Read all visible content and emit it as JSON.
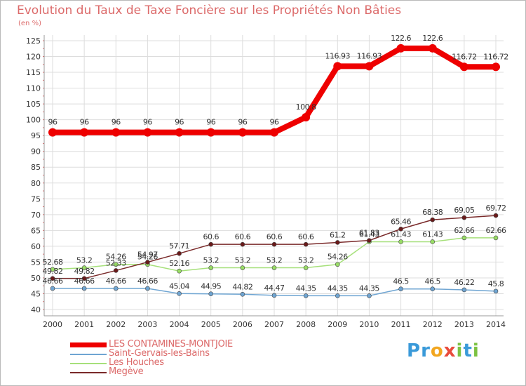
{
  "title": "Evolution du Taux de Taxe Foncière sur les Propriétés Non Bâties",
  "subtitle": "(en %)",
  "brand": {
    "text": "Proxiti",
    "letter_colors": [
      "#3a9ad9",
      "#3a9ad9",
      "#f2a61f",
      "#e94b3c",
      "#7cc242",
      "#3a9ad9",
      "#7cc242"
    ]
  },
  "colors": {
    "text": "#dc6a6a",
    "grid": "#dddddd",
    "axis": "#999999"
  },
  "chart_data": {
    "type": "line",
    "x": [
      "2000",
      "2001",
      "2002",
      "2003",
      "2004",
      "2005",
      "2006",
      "2007",
      "2008",
      "2009",
      "2010",
      "2011",
      "2012",
      "2013",
      "2014"
    ],
    "ylim": [
      40,
      125
    ],
    "yticks": [
      40,
      45,
      50,
      55,
      60,
      65,
      70,
      75,
      80,
      85,
      90,
      95,
      100,
      105,
      110,
      115,
      120,
      125
    ],
    "grid": true,
    "legend_position": "bottom-left",
    "series": [
      {
        "name": "LES CONTAMINES-MONTJOIE",
        "color": "#ee0000",
        "width": 8,
        "marker_radius": 6,
        "values": [
          96,
          96,
          96,
          96,
          96,
          96,
          96,
          96,
          100.8,
          116.93,
          116.93,
          122.6,
          122.6,
          116.72,
          116.72
        ],
        "labels": [
          "96",
          "96",
          "96",
          "96",
          "96",
          "96",
          "96",
          "96",
          "100.8",
          "116.93",
          "116.93",
          "122.6",
          "122.6",
          "116.72",
          "116.72"
        ]
      },
      {
        "name": "Saint-Gervais-les-Bains",
        "color": "#6fa5d2",
        "width": 1.5,
        "marker_radius": 3,
        "marker_fill": "#6fa5d2",
        "values": [
          46.66,
          46.66,
          46.66,
          46.66,
          45.04,
          44.95,
          44.82,
          44.47,
          44.35,
          44.35,
          44.35,
          46.5,
          46.5,
          46.22,
          45.8
        ],
        "labels": [
          "46.66",
          "46.66",
          "46.66",
          "46.66",
          "45.04",
          "44.95",
          "44.82",
          "44.47",
          "44.35",
          "44.35",
          "44.35",
          "46.5",
          "46.5",
          "46.22",
          "45.8"
        ]
      },
      {
        "name": "Les Houches",
        "color": "#a6e07a",
        "width": 1.5,
        "marker_radius": 3,
        "marker_fill": "#99dd66",
        "values": [
          52.68,
          53.2,
          54.26,
          54.26,
          52.16,
          53.2,
          53.2,
          53.2,
          53.2,
          54.26,
          61.43,
          61.43,
          61.43,
          62.66,
          62.66
        ],
        "labels": [
          "52.68",
          "53.2",
          "54.26",
          "54.26",
          "52.16",
          "53.2",
          "53.2",
          "53.2",
          "53.2",
          "54.26",
          "61.43",
          "61.43",
          "61.43",
          "62.66",
          "62.66"
        ]
      },
      {
        "name": "Megève",
        "color": "#7a2a2a",
        "width": 1.5,
        "marker_radius": 3,
        "marker_fill": "#6a1a1a",
        "values": [
          49.82,
          49.82,
          52.33,
          54.97,
          57.71,
          60.6,
          60.6,
          60.6,
          60.6,
          61.2,
          61.83,
          65.46,
          68.38,
          69.05,
          69.72
        ],
        "labels": [
          "49.82",
          "49.82",
          "52.33",
          "54.97",
          "57.71",
          "60.6",
          "60.6",
          "60.6",
          "60.6",
          "61.2",
          "61.83",
          "65.46",
          "68.38",
          "69.05",
          "69.72"
        ]
      }
    ]
  }
}
